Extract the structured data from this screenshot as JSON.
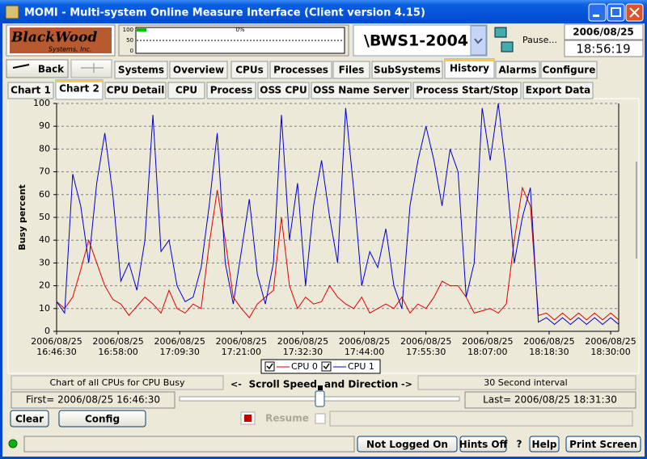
{
  "window": {
    "title": "MOMI - Multi-system Online Measure Interface (Client version 4.15)"
  },
  "logo": {
    "line1": "BlackWood",
    "line2": "Systems, Inc."
  },
  "toolbar": {
    "meter": {
      "ticks": [
        "100",
        "50",
        "0"
      ],
      "value": "0%"
    },
    "system": "\\BWS1-2004",
    "pause": "Pause...",
    "date": "2006/08/25",
    "time": "18:56:19"
  },
  "nav": {
    "back": "Back",
    "tabs": [
      "Systems",
      "Overview",
      "CPUs",
      "Processes",
      "Files",
      "SubSystems",
      "History",
      "Alarms",
      "Configure"
    ],
    "active_tab": 6
  },
  "subtabs": {
    "items": [
      "Chart 1",
      "Chart 2",
      "CPU Detail",
      "CPU",
      "Process",
      "OSS CPU",
      "OSS Name Server",
      "Process Start/Stop",
      "Export Data"
    ],
    "active": 1
  },
  "chart_data": {
    "type": "line",
    "ylabel": "Busy percent",
    "ylim": [
      0,
      100
    ],
    "yticks": [
      0,
      10,
      20,
      30,
      40,
      50,
      60,
      70,
      80,
      90,
      100
    ],
    "grid": true,
    "xlim": [
      "2006/08/25 16:46:30",
      "2006/08/25 18:31:30"
    ],
    "xticks": [
      "2006/08/25 16:46:30",
      "2006/08/25 16:58:00",
      "2006/08/25 17:09:30",
      "2006/08/25 17:21:00",
      "2006/08/25 17:32:30",
      "2006/08/25 17:44:00",
      "2006/08/25 17:55:30",
      "2006/08/25 18:07:00",
      "2006/08/25 18:18:30",
      "2006/08/25 18:30:00"
    ],
    "x": [
      "2006/08/25 16:46:30",
      "2006/08/25 16:48:00",
      "2006/08/25 16:49:30",
      "2006/08/25 16:51:00",
      "2006/08/25 16:52:30",
      "2006/08/25 16:54:00",
      "2006/08/25 16:55:30",
      "2006/08/25 16:57:00",
      "2006/08/25 16:58:30",
      "2006/08/25 17:00:00",
      "2006/08/25 17:01:30",
      "2006/08/25 17:03:00",
      "2006/08/25 17:04:30",
      "2006/08/25 17:06:00",
      "2006/08/25 17:07:30",
      "2006/08/25 17:09:00",
      "2006/08/25 17:10:30",
      "2006/08/25 17:12:00",
      "2006/08/25 17:13:30",
      "2006/08/25 17:15:00",
      "2006/08/25 17:16:30",
      "2006/08/25 17:18:00",
      "2006/08/25 17:19:30",
      "2006/08/25 17:21:00",
      "2006/08/25 17:22:30",
      "2006/08/25 17:24:00",
      "2006/08/25 17:25:30",
      "2006/08/25 17:27:00",
      "2006/08/25 17:28:30",
      "2006/08/25 17:30:00",
      "2006/08/25 17:31:30",
      "2006/08/25 17:33:00",
      "2006/08/25 17:34:30",
      "2006/08/25 17:36:00",
      "2006/08/25 17:37:30",
      "2006/08/25 17:39:00",
      "2006/08/25 17:40:30",
      "2006/08/25 17:42:00",
      "2006/08/25 17:43:30",
      "2006/08/25 17:45:00",
      "2006/08/25 17:46:30",
      "2006/08/25 17:48:00",
      "2006/08/25 17:49:30",
      "2006/08/25 17:51:00",
      "2006/08/25 17:52:30",
      "2006/08/25 17:54:00",
      "2006/08/25 17:55:30",
      "2006/08/25 17:57:00",
      "2006/08/25 17:58:30",
      "2006/08/25 18:00:00",
      "2006/08/25 18:01:30",
      "2006/08/25 18:03:00",
      "2006/08/25 18:04:30",
      "2006/08/25 18:06:00",
      "2006/08/25 18:07:30",
      "2006/08/25 18:09:00",
      "2006/08/25 18:10:30",
      "2006/08/25 18:12:00",
      "2006/08/25 18:13:30",
      "2006/08/25 18:15:00",
      "2006/08/25 18:16:30",
      "2006/08/25 18:18:00",
      "2006/08/25 18:19:30",
      "2006/08/25 18:21:00",
      "2006/08/25 18:22:30",
      "2006/08/25 18:24:00",
      "2006/08/25 18:25:30",
      "2006/08/25 18:27:00",
      "2006/08/25 18:28:30",
      "2006/08/25 18:30:00",
      "2006/08/25 18:31:30"
    ],
    "series": [
      {
        "name": "CPU 0",
        "color": "#e00000",
        "values": [
          13,
          10,
          15,
          27,
          40,
          30,
          20,
          14,
          12,
          7,
          11,
          15,
          12,
          8,
          18,
          10,
          8,
          12,
          10,
          38,
          62,
          40,
          15,
          10,
          6,
          12,
          15,
          18,
          50,
          20,
          10,
          15,
          12,
          13,
          20,
          15,
          12,
          10,
          15,
          8,
          10,
          12,
          10,
          15,
          8,
          12,
          10,
          15,
          22,
          20,
          20,
          15,
          8,
          9,
          10,
          8,
          12,
          40,
          63,
          55,
          7,
          8,
          5,
          8,
          5,
          8,
          5,
          8,
          5,
          8,
          5
        ]
      },
      {
        "name": "CPU 1",
        "color": "#0000d0",
        "values": [
          13,
          8,
          69,
          55,
          30,
          65,
          87,
          60,
          22,
          30,
          18,
          40,
          95,
          35,
          40,
          20,
          13,
          15,
          28,
          55,
          87,
          30,
          12,
          35,
          58,
          25,
          12,
          30,
          95,
          40,
          65,
          20,
          55,
          75,
          50,
          30,
          98,
          62,
          20,
          35,
          28,
          45,
          20,
          10,
          55,
          75,
          90,
          75,
          55,
          80,
          70,
          15,
          30,
          98,
          75,
          100,
          70,
          30,
          50,
          63,
          4,
          6,
          3,
          6,
          3,
          6,
          3,
          6,
          3,
          6,
          3
        ]
      }
    ]
  },
  "controls": {
    "description": "Chart of all CPUs for CPU Busy",
    "scroll_left": "<-",
    "scroll_label": "Scroll Speed",
    "scroll_label2": "and Direction",
    "scroll_right": "->",
    "interval": "30 Second interval",
    "first": "First= 2006/08/25 16:46:30",
    "last": "Last= 2006/08/25 18:31:30",
    "clear": "Clear",
    "config": "Config",
    "resume": "Resume"
  },
  "status": {
    "login": "Not Logged On",
    "hints": "Hints Off",
    "question": "?",
    "help": "Help",
    "print": "Print Screen"
  }
}
